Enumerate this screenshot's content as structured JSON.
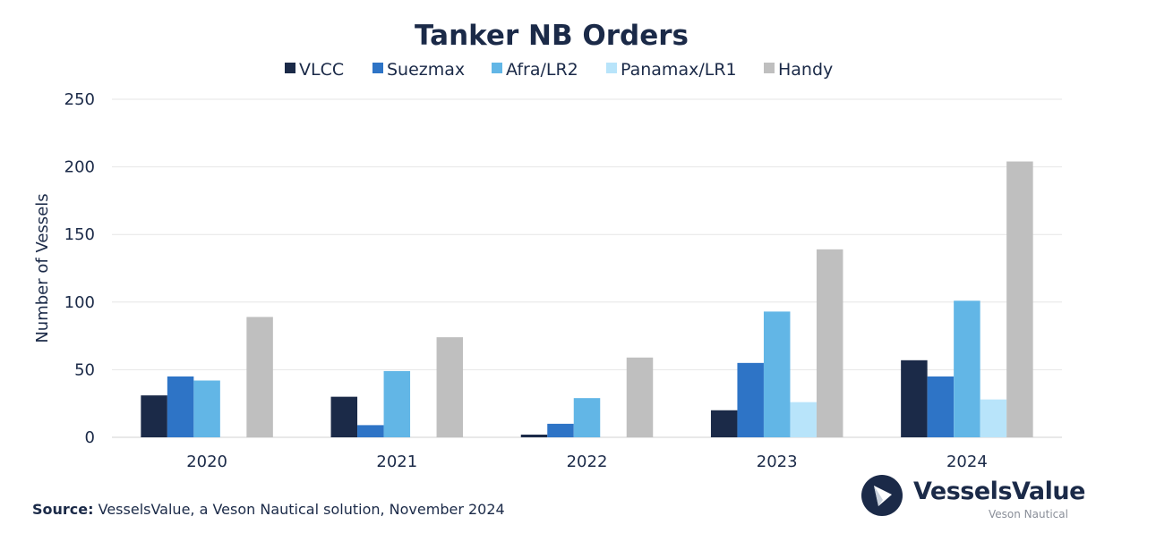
{
  "chart_data": {
    "type": "bar",
    "title": "Tanker NB Orders",
    "ylabel": "Number of Vessels",
    "xlabel": "",
    "ylim": [
      0,
      250
    ],
    "yticks": [
      0,
      50,
      100,
      150,
      200,
      250
    ],
    "grid": true,
    "legend_position": "top",
    "categories": [
      "2020",
      "2021",
      "2022",
      "2023",
      "2024"
    ],
    "series": [
      {
        "name": "VLCC",
        "color": "#1b2a48",
        "values": [
          31,
          30,
          2,
          20,
          57
        ]
      },
      {
        "name": "Suezmax",
        "color": "#2e74c6",
        "values": [
          45,
          9,
          10,
          55,
          45
        ]
      },
      {
        "name": "Afra/LR2",
        "color": "#62b6e6",
        "values": [
          42,
          49,
          29,
          93,
          101
        ]
      },
      {
        "name": "Panamax/LR1",
        "color": "#b8e4fa",
        "values": [
          0,
          0,
          0,
          26,
          28
        ]
      },
      {
        "name": "Handy",
        "color": "#bfbfbf",
        "values": [
          89,
          74,
          59,
          139,
          204
        ]
      }
    ]
  },
  "source": {
    "label": "Source:",
    "text": "VesselsValue, a Veson Nautical solution, November 2024"
  },
  "logo": {
    "name": "VesselsValue",
    "subtitle": "Veson Nautical",
    "mark_color": "#1b2a48"
  }
}
